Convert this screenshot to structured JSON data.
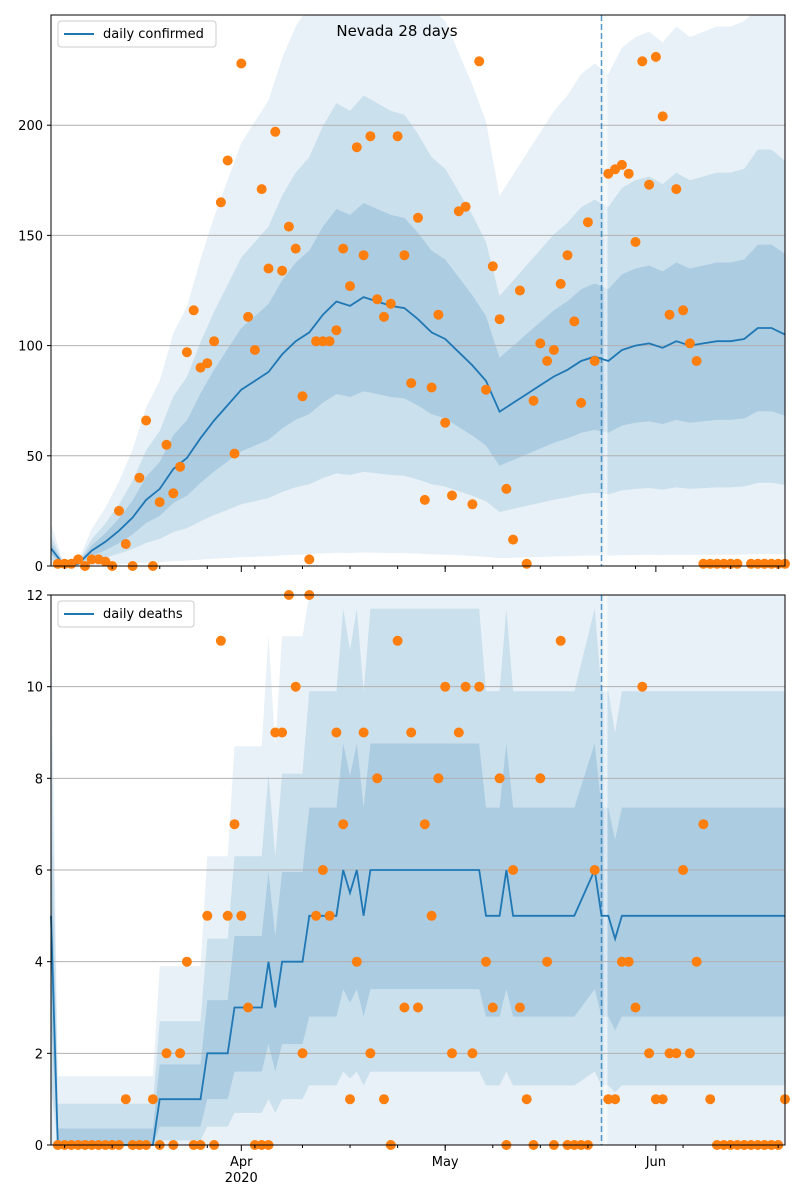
{
  "chart_data": [
    {
      "type": "line",
      "title": "Nevada 28 days",
      "legend": {
        "entries": [
          "daily confirmed"
        ],
        "placement": "top-left"
      },
      "x_ticks": [
        {
          "date": "2020-04-01",
          "label": "Apr",
          "sublabel": "2020"
        },
        {
          "date": "2020-05-01",
          "label": "May"
        },
        {
          "date": "2020-06-01",
          "label": "Jun"
        }
      ],
      "xlim": [
        "2020-03-04",
        "2020-06-20"
      ],
      "ylim": [
        0,
        250
      ],
      "y_ticks": [
        "0",
        "50",
        "100",
        "150",
        "200"
      ],
      "grid": "horizontal",
      "forecast_start": "2020-05-24",
      "colors": {
        "line": "#1f77b4",
        "points": "#ff7f0e",
        "band": "#1f77b4"
      },
      "series": [
        {
          "name": "daily confirmed",
          "x": [
            "2020-03-04",
            "2020-03-06",
            "2020-03-08",
            "2020-03-10",
            "2020-03-12",
            "2020-03-14",
            "2020-03-16",
            "2020-03-18",
            "2020-03-20",
            "2020-03-22",
            "2020-03-24",
            "2020-03-26",
            "2020-03-28",
            "2020-03-30",
            "2020-04-01",
            "2020-04-03",
            "2020-04-05",
            "2020-04-07",
            "2020-04-09",
            "2020-04-11",
            "2020-04-13",
            "2020-04-15",
            "2020-04-17",
            "2020-04-19",
            "2020-04-21",
            "2020-04-23",
            "2020-04-25",
            "2020-04-27",
            "2020-04-29",
            "2020-05-01",
            "2020-05-03",
            "2020-05-05",
            "2020-05-07",
            "2020-05-09",
            "2020-05-11",
            "2020-05-13",
            "2020-05-15",
            "2020-05-17",
            "2020-05-19",
            "2020-05-21",
            "2020-05-23",
            "2020-05-25",
            "2020-05-27",
            "2020-05-29",
            "2020-05-31",
            "2020-06-02",
            "2020-06-04",
            "2020-06-06",
            "2020-06-08",
            "2020-06-10",
            "2020-06-12",
            "2020-06-14",
            "2020-06-16",
            "2020-06-18",
            "2020-06-20"
          ],
          "values": [
            8,
            0,
            1,
            7,
            11,
            16,
            22,
            30,
            35,
            44,
            49,
            58,
            66,
            73,
            80,
            84,
            88,
            96,
            102,
            106,
            114,
            120,
            118,
            122,
            120,
            118,
            117,
            112,
            106,
            103,
            97,
            91,
            84,
            70,
            74,
            78,
            82,
            86,
            89,
            93,
            95,
            93,
            98,
            100,
            101,
            99,
            102,
            100,
            101,
            102,
            102,
            103,
            108,
            108,
            105
          ]
        },
        {
          "name": "observed",
          "type": "scatter",
          "x": [
            "2020-03-05",
            "2020-03-06",
            "2020-03-07",
            "2020-03-08",
            "2020-03-09",
            "2020-03-10",
            "2020-03-11",
            "2020-03-12",
            "2020-03-13",
            "2020-03-14",
            "2020-03-15",
            "2020-03-16",
            "2020-03-17",
            "2020-03-18",
            "2020-03-19",
            "2020-03-20",
            "2020-03-21",
            "2020-03-22",
            "2020-03-23",
            "2020-03-24",
            "2020-03-25",
            "2020-03-26",
            "2020-03-27",
            "2020-03-28",
            "2020-03-29",
            "2020-03-30",
            "2020-03-31",
            "2020-04-01",
            "2020-04-02",
            "2020-04-03",
            "2020-04-04",
            "2020-04-05",
            "2020-04-06",
            "2020-04-07",
            "2020-04-08",
            "2020-04-09",
            "2020-04-10",
            "2020-04-11",
            "2020-04-12",
            "2020-04-13",
            "2020-04-14",
            "2020-04-15",
            "2020-04-16",
            "2020-04-17",
            "2020-04-18",
            "2020-04-19",
            "2020-04-20",
            "2020-04-21",
            "2020-04-22",
            "2020-04-23",
            "2020-04-24",
            "2020-04-25",
            "2020-04-26",
            "2020-04-27",
            "2020-04-28",
            "2020-04-29",
            "2020-04-30",
            "2020-05-01",
            "2020-05-02",
            "2020-05-03",
            "2020-05-04",
            "2020-05-05",
            "2020-05-06",
            "2020-05-07",
            "2020-05-08",
            "2020-05-09",
            "2020-05-10",
            "2020-05-11",
            "2020-05-12",
            "2020-05-13",
            "2020-05-14",
            "2020-05-15",
            "2020-05-16",
            "2020-05-17",
            "2020-05-18",
            "2020-05-19",
            "2020-05-20",
            "2020-05-21",
            "2020-05-22",
            "2020-05-23",
            "2020-05-25",
            "2020-05-26",
            "2020-05-27",
            "2020-05-28",
            "2020-05-29",
            "2020-05-30",
            "2020-05-31",
            "2020-06-01",
            "2020-06-02",
            "2020-06-03",
            "2020-06-04",
            "2020-06-05",
            "2020-06-06",
            "2020-06-07",
            "2020-06-08",
            "2020-06-09",
            "2020-06-10",
            "2020-06-11",
            "2020-06-12",
            "2020-06-13",
            "2020-06-15",
            "2020-06-16",
            "2020-06-17",
            "2020-06-18",
            "2020-06-19",
            "2020-06-20"
          ],
          "values": [
            1,
            1,
            1,
            3,
            0,
            3,
            3,
            2,
            0,
            25,
            10,
            0,
            40,
            66,
            0,
            29,
            55,
            33,
            45,
            97,
            116,
            90,
            92,
            102,
            165,
            184,
            51,
            228,
            113,
            98,
            171,
            135,
            197,
            134,
            154,
            144,
            77,
            3,
            102,
            102,
            102,
            107,
            144,
            127,
            190,
            141,
            195,
            121,
            113,
            119,
            195,
            141,
            83,
            158,
            30,
            81,
            114,
            65,
            32,
            161,
            163,
            28,
            229,
            80,
            136,
            112,
            35,
            12,
            125,
            1,
            75,
            101,
            93,
            98,
            128,
            141,
            111,
            74,
            156,
            93,
            178,
            180,
            182,
            178,
            147,
            229,
            173,
            231,
            204,
            114,
            171,
            116,
            101,
            93,
            1,
            1,
            1,
            1,
            1,
            1,
            1,
            1,
            1,
            1,
            1,
            1
          ]
        }
      ]
    },
    {
      "type": "line",
      "title": "",
      "legend": {
        "entries": [
          "daily deaths"
        ],
        "placement": "top-left"
      },
      "x_ticks": [
        {
          "date": "2020-04-01",
          "label": "Apr",
          "sublabel": "2020"
        },
        {
          "date": "2020-05-01",
          "label": "May"
        },
        {
          "date": "2020-06-01",
          "label": "Jun"
        }
      ],
      "xlim": [
        "2020-03-04",
        "2020-06-20"
      ],
      "ylim": [
        0,
        12
      ],
      "y_ticks": [
        "0",
        "2",
        "4",
        "6",
        "8",
        "10",
        "12"
      ],
      "grid": "horizontal",
      "forecast_start": "2020-05-24",
      "series": [
        {
          "name": "daily deaths",
          "x": [
            "2020-03-04",
            "2020-03-05",
            "2020-03-19",
            "2020-03-20",
            "2020-03-26",
            "2020-03-27",
            "2020-03-30",
            "2020-03-31",
            "2020-04-04",
            "2020-04-05",
            "2020-04-06",
            "2020-04-07",
            "2020-04-10",
            "2020-04-11",
            "2020-04-14",
            "2020-04-15",
            "2020-04-16",
            "2020-04-17",
            "2020-04-18",
            "2020-04-19",
            "2020-04-20",
            "2020-04-22",
            "2020-04-23",
            "2020-04-25",
            "2020-04-28",
            "2020-05-01",
            "2020-05-06",
            "2020-05-07",
            "2020-05-09",
            "2020-05-10",
            "2020-05-11",
            "2020-05-16",
            "2020-05-20",
            "2020-05-23",
            "2020-05-24",
            "2020-05-25",
            "2020-05-26",
            "2020-05-27",
            "2020-06-04",
            "2020-06-10",
            "2020-06-20"
          ],
          "values": [
            5,
            0,
            0,
            1,
            1,
            2,
            2,
            3,
            3,
            4,
            3,
            4,
            4,
            5,
            5,
            5,
            6,
            5.5,
            6,
            5,
            6,
            6,
            6,
            6,
            6,
            6,
            6,
            5,
            5,
            6,
            5,
            5,
            5,
            6,
            5,
            5,
            4.5,
            5,
            5,
            5,
            5
          ]
        },
        {
          "name": "observed",
          "type": "scatter",
          "x": [
            "2020-03-05",
            "2020-03-06",
            "2020-03-07",
            "2020-03-08",
            "2020-03-09",
            "2020-03-10",
            "2020-03-11",
            "2020-03-12",
            "2020-03-13",
            "2020-03-14",
            "2020-03-15",
            "2020-03-16",
            "2020-03-17",
            "2020-03-18",
            "2020-03-19",
            "2020-03-20",
            "2020-03-21",
            "2020-03-22",
            "2020-03-23",
            "2020-03-24",
            "2020-03-25",
            "2020-03-26",
            "2020-03-27",
            "2020-03-28",
            "2020-03-29",
            "2020-03-30",
            "2020-03-31",
            "2020-04-01",
            "2020-04-02",
            "2020-04-03",
            "2020-04-04",
            "2020-04-05",
            "2020-04-06",
            "2020-04-07",
            "2020-04-08",
            "2020-04-09",
            "2020-04-10",
            "2020-04-11",
            "2020-04-12",
            "2020-04-13",
            "2020-04-14",
            "2020-04-15",
            "2020-04-16",
            "2020-04-17",
            "2020-04-18",
            "2020-04-19",
            "2020-04-20",
            "2020-04-21",
            "2020-04-22",
            "2020-04-23",
            "2020-04-24",
            "2020-04-25",
            "2020-04-26",
            "2020-04-27",
            "2020-04-28",
            "2020-04-29",
            "2020-04-30",
            "2020-05-01",
            "2020-05-02",
            "2020-05-03",
            "2020-05-04",
            "2020-05-05",
            "2020-05-06",
            "2020-05-07",
            "2020-05-08",
            "2020-05-09",
            "2020-05-10",
            "2020-05-11",
            "2020-05-12",
            "2020-05-13",
            "2020-05-14",
            "2020-05-15",
            "2020-05-16",
            "2020-05-17",
            "2020-05-18",
            "2020-05-19",
            "2020-05-20",
            "2020-05-21",
            "2020-05-22",
            "2020-05-23",
            "2020-05-25",
            "2020-05-26",
            "2020-05-27",
            "2020-05-28",
            "2020-05-29",
            "2020-05-30",
            "2020-05-31",
            "2020-06-01",
            "2020-06-02",
            "2020-06-03",
            "2020-06-04",
            "2020-06-05",
            "2020-06-06",
            "2020-06-07",
            "2020-06-08",
            "2020-06-09",
            "2020-06-10",
            "2020-06-11",
            "2020-06-12",
            "2020-06-13",
            "2020-06-14",
            "2020-06-15",
            "2020-06-16",
            "2020-06-17",
            "2020-06-18",
            "2020-06-19",
            "2020-06-20"
          ],
          "values": [
            0,
            0,
            0,
            0,
            0,
            0,
            0,
            0,
            0,
            0,
            1,
            0,
            0,
            0,
            1,
            0,
            2,
            0,
            2,
            4,
            0,
            0,
            5,
            0,
            11,
            5,
            7,
            5,
            3,
            0,
            0,
            0,
            9,
            9,
            12,
            10,
            2,
            12,
            5,
            6,
            5,
            9,
            7,
            1,
            4,
            9,
            2,
            8,
            1,
            0,
            11,
            3,
            9,
            3,
            7,
            5,
            8,
            10,
            2,
            9,
            10,
            2,
            10,
            4,
            3,
            8,
            0,
            6,
            3,
            1,
            0,
            8,
            4,
            0,
            11,
            0,
            0,
            0,
            0,
            6,
            1,
            1,
            4,
            4,
            3,
            10,
            2,
            1,
            1,
            2,
            2,
            6,
            2,
            4,
            7,
            1,
            0,
            0,
            0,
            0,
            0,
            0,
            0,
            0,
            0,
            0,
            1
          ]
        }
      ]
    }
  ]
}
